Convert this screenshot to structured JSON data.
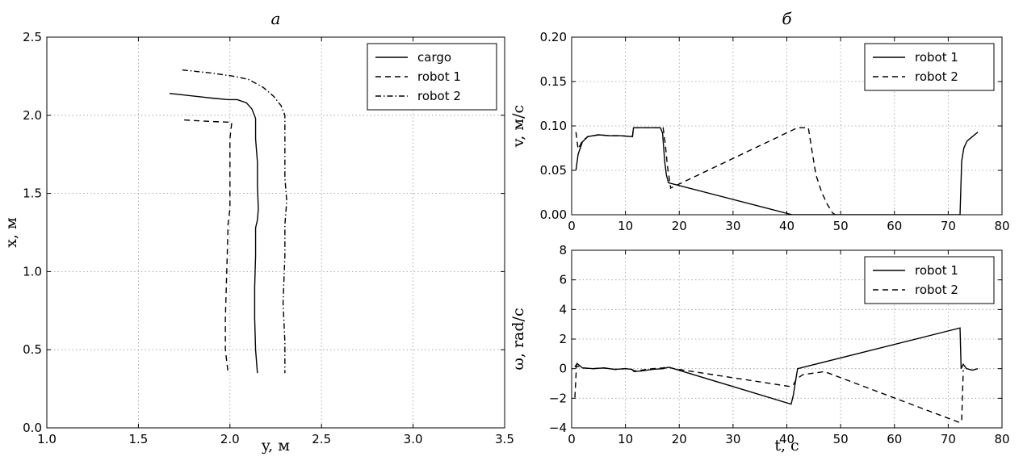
{
  "chart_data": [
    {
      "id": "trajectory",
      "type": "line",
      "title": "а",
      "xlabel": "y, м",
      "ylabel": "x, м",
      "xlim": [
        1.0,
        3.5
      ],
      "ylim": [
        0.0,
        2.5
      ],
      "xticks": [
        "1.0",
        "1.5",
        "2.0",
        "2.5",
        "3.0",
        "3.5"
      ],
      "yticks": [
        "0.0",
        "0.5",
        "1.0",
        "1.5",
        "2.0",
        "2.5"
      ],
      "grid": true,
      "legend_position": "top-right",
      "series": [
        {
          "name": "cargo",
          "style": "solid",
          "points": [
            [
              1.67,
              2.14
            ],
            [
              1.9,
              2.11
            ],
            [
              1.99,
              2.1
            ],
            [
              2.04,
              2.1
            ],
            [
              2.09,
              2.08
            ],
            [
              2.12,
              2.04
            ],
            [
              2.14,
              1.98
            ],
            [
              2.14,
              1.85
            ],
            [
              2.15,
              1.7
            ],
            [
              2.15,
              1.55
            ],
            [
              2.155,
              1.4
            ],
            [
              2.15,
              1.33
            ],
            [
              2.14,
              1.28
            ],
            [
              2.14,
              1.1
            ],
            [
              2.135,
              0.9
            ],
            [
              2.135,
              0.7
            ],
            [
              2.14,
              0.5
            ],
            [
              2.15,
              0.35
            ]
          ]
        },
        {
          "name": "robot 1",
          "style": "dashed",
          "points": [
            [
              1.75,
              1.97
            ],
            [
              1.9,
              1.96
            ],
            [
              2.01,
              1.955
            ],
            [
              2.0,
              1.85
            ],
            [
              2.0,
              1.6
            ],
            [
              2.0,
              1.4
            ],
            [
              1.99,
              1.31
            ],
            [
              1.985,
              1.1
            ],
            [
              1.98,
              0.9
            ],
            [
              1.975,
              0.7
            ],
            [
              1.975,
              0.5
            ],
            [
              1.99,
              0.35
            ]
          ]
        },
        {
          "name": "robot 2",
          "style": "dashdot",
          "points": [
            [
              1.74,
              2.29
            ],
            [
              1.9,
              2.27
            ],
            [
              2.02,
              2.25
            ],
            [
              2.1,
              2.23
            ],
            [
              2.18,
              2.18
            ],
            [
              2.24,
              2.12
            ],
            [
              2.28,
              2.06
            ],
            [
              2.3,
              2.0
            ],
            [
              2.3,
              1.85
            ],
            [
              2.3,
              1.6
            ],
            [
              2.31,
              1.45
            ],
            [
              2.3,
              1.3
            ],
            [
              2.3,
              1.1
            ],
            [
              2.29,
              0.8
            ],
            [
              2.3,
              0.55
            ],
            [
              2.3,
              0.35
            ]
          ]
        }
      ]
    },
    {
      "id": "velocity",
      "type": "line",
      "title": "б",
      "xlabel": "",
      "ylabel": "v, м/с",
      "xlim": [
        0,
        80
      ],
      "ylim": [
        0.0,
        0.2
      ],
      "xticks": [
        "0",
        "10",
        "20",
        "30",
        "40",
        "50",
        "60",
        "70",
        "80"
      ],
      "yticks": [
        "0.00",
        "0.05",
        "0.10",
        "0.15",
        "0.20"
      ],
      "grid": true,
      "legend_position": "top-right",
      "series": [
        {
          "name": "robot 1",
          "style": "solid",
          "points": [
            [
              0.8,
              0.05
            ],
            [
              1.2,
              0.068
            ],
            [
              2,
              0.082
            ],
            [
              3,
              0.088
            ],
            [
              5,
              0.09
            ],
            [
              7,
              0.089
            ],
            [
              9,
              0.089
            ],
            [
              11.3,
              0.088
            ],
            [
              11.5,
              0.098
            ],
            [
              13,
              0.098
            ],
            [
              16.5,
              0.098
            ],
            [
              16.9,
              0.092
            ],
            [
              17.3,
              0.06
            ],
            [
              17.6,
              0.045
            ],
            [
              18,
              0.036
            ],
            [
              41,
              0.0
            ],
            [
              42,
              0.0
            ],
            [
              72.2,
              0.0
            ],
            [
              72.5,
              0.06
            ],
            [
              72.9,
              0.075
            ],
            [
              73.5,
              0.083
            ],
            [
              74.5,
              0.088
            ],
            [
              75.5,
              0.093
            ]
          ]
        },
        {
          "name": "robot 2",
          "style": "dashed",
          "points": [
            [
              0.8,
              0.093
            ],
            [
              1.2,
              0.074
            ],
            [
              2,
              0.083
            ],
            [
              3,
              0.088
            ],
            [
              5,
              0.09
            ],
            [
              7,
              0.089
            ],
            [
              9,
              0.089
            ],
            [
              11.3,
              0.088
            ],
            [
              11.5,
              0.098
            ],
            [
              13,
              0.098
            ],
            [
              17.0,
              0.098
            ],
            [
              17.4,
              0.08
            ],
            [
              17.8,
              0.055
            ],
            [
              18.4,
              0.03
            ],
            [
              42,
              0.098
            ],
            [
              44,
              0.098
            ],
            [
              44.6,
              0.075
            ],
            [
              45.4,
              0.045
            ],
            [
              46.5,
              0.025
            ],
            [
              47.5,
              0.012
            ],
            [
              48.5,
              0.002
            ],
            [
              49,
              0.0
            ]
          ]
        }
      ]
    },
    {
      "id": "angular",
      "type": "line",
      "title": "",
      "xlabel": "t, с",
      "ylabel": "ω, rad/c",
      "xlim": [
        0,
        80
      ],
      "ylim": [
        -4,
        8
      ],
      "xticks": [
        "0",
        "10",
        "20",
        "30",
        "40",
        "50",
        "60",
        "70",
        "80"
      ],
      "yticks": [
        "−4",
        "−2",
        "0",
        "2",
        "4",
        "6",
        "8"
      ],
      "grid": true,
      "legend_position": "top-right",
      "series": [
        {
          "name": "robot 1",
          "style": "solid",
          "points": [
            [
              0.6,
              0.1
            ],
            [
              1,
              0.35
            ],
            [
              2,
              0.05
            ],
            [
              4,
              0.0
            ],
            [
              6,
              0.05
            ],
            [
              8,
              -0.05
            ],
            [
              10,
              0.0
            ],
            [
              11.2,
              -0.05
            ],
            [
              11.6,
              -0.2
            ],
            [
              13,
              -0.15
            ],
            [
              15,
              -0.05
            ],
            [
              17,
              0.0
            ],
            [
              18,
              0.1
            ],
            [
              19,
              0.0
            ],
            [
              40.8,
              -2.4
            ],
            [
              41.2,
              -1.8
            ],
            [
              41.6,
              -0.9
            ],
            [
              42,
              0.0
            ],
            [
              72.2,
              2.75
            ],
            [
              72.4,
              0.0
            ],
            [
              72.8,
              0.3
            ],
            [
              73.4,
              0.0
            ],
            [
              74.5,
              -0.1
            ],
            [
              75.5,
              0.0
            ]
          ]
        },
        {
          "name": "robot 2",
          "style": "dashed",
          "points": [
            [
              0.6,
              -1.95
            ],
            [
              0.9,
              0.2
            ],
            [
              2,
              0.05
            ],
            [
              4,
              0.0
            ],
            [
              6,
              0.05
            ],
            [
              8,
              -0.05
            ],
            [
              10,
              0.0
            ],
            [
              11.2,
              -0.05
            ],
            [
              11.6,
              -0.15
            ],
            [
              13,
              -0.1
            ],
            [
              15,
              0.0
            ],
            [
              17,
              0.05
            ],
            [
              18,
              0.1
            ],
            [
              19,
              0.0
            ],
            [
              40.5,
              -1.2
            ],
            [
              41.2,
              -1.1
            ],
            [
              41.8,
              -0.7
            ],
            [
              43,
              -0.4
            ],
            [
              45,
              -0.3
            ],
            [
              47,
              -0.2
            ],
            [
              72.2,
              -3.65
            ],
            [
              72.5,
              -3.5
            ],
            [
              72.8,
              -0.1
            ]
          ]
        }
      ]
    }
  ]
}
